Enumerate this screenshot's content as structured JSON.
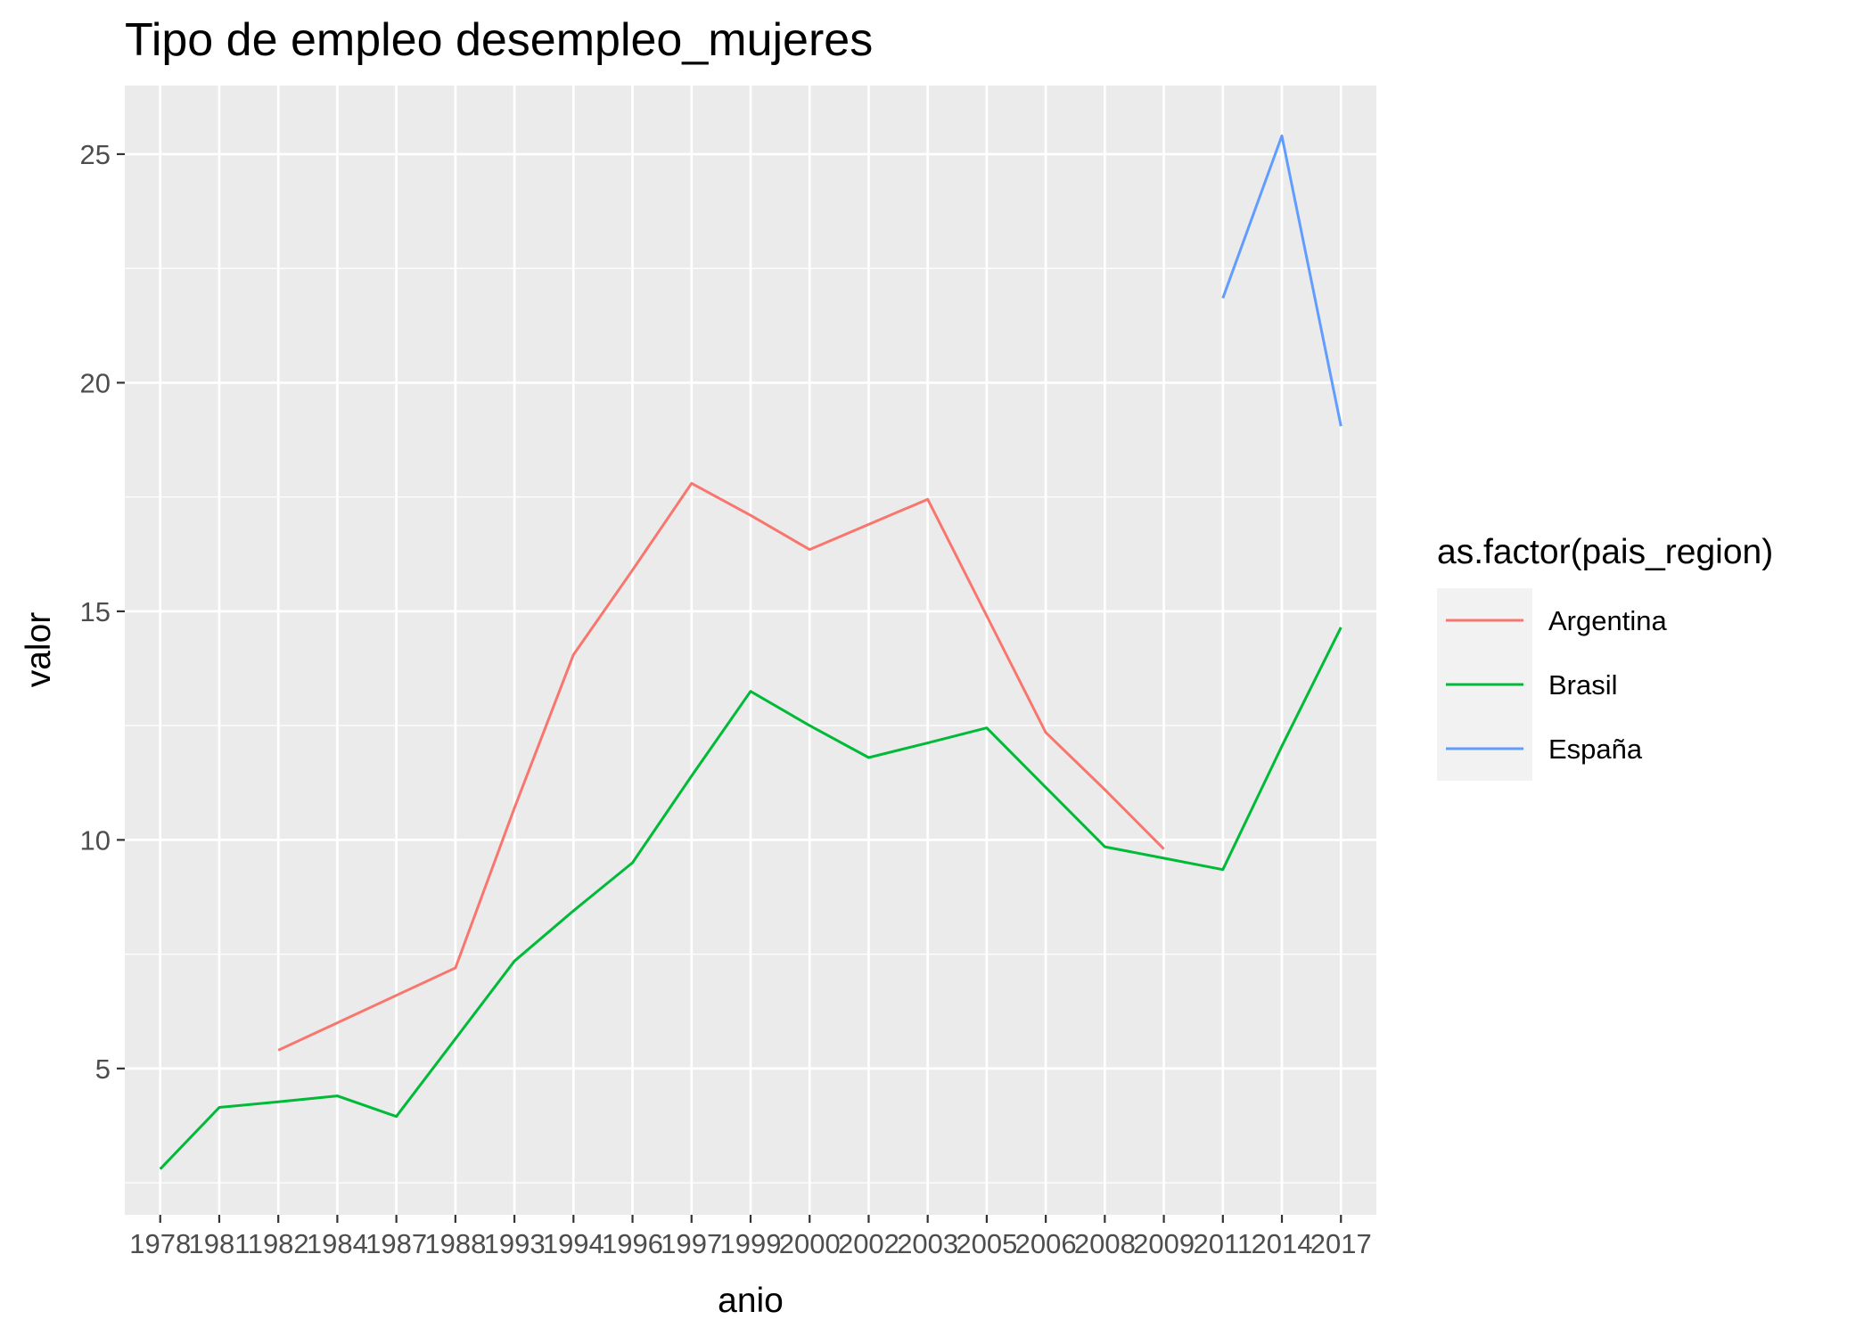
{
  "chart_data": {
    "type": "line",
    "title": "Tipo de empleo desempleo_mujeres",
    "xlabel": "anio",
    "ylabel": "valor",
    "categories": [
      "1978",
      "1981",
      "1982",
      "1984",
      "1987",
      "1988",
      "1993",
      "1994",
      "1996",
      "1997",
      "1999",
      "2000",
      "2002",
      "2003",
      "2005",
      "2006",
      "2008",
      "2009",
      "2011",
      "2014",
      "2017"
    ],
    "ylim": [
      1.8,
      26.5
    ],
    "yticks": [
      5,
      10,
      15,
      20,
      25
    ],
    "grid": true,
    "legend": {
      "title": "as.factor(pais_region)",
      "position": "right"
    },
    "series": [
      {
        "name": "Argentina",
        "color": "#F8766D",
        "values": [
          null,
          null,
          5.4,
          6.0,
          6.6,
          7.2,
          10.7,
          14.05,
          15.9,
          17.8,
          17.1,
          16.35,
          16.9,
          17.45,
          14.9,
          12.35,
          11.1,
          9.8,
          null,
          null,
          null
        ]
      },
      {
        "name": "Brasil",
        "color": "#00BA38",
        "values": [
          2.8,
          4.15,
          4.27,
          4.4,
          3.95,
          5.65,
          7.35,
          8.45,
          9.5,
          11.4,
          13.25,
          12.5,
          11.8,
          12.12,
          12.45,
          11.15,
          9.85,
          9.6,
          9.35,
          12.05,
          14.65
        ]
      },
      {
        "name": "España",
        "color": "#619CFF",
        "values": [
          null,
          null,
          null,
          null,
          null,
          null,
          null,
          null,
          null,
          null,
          null,
          null,
          null,
          null,
          null,
          null,
          null,
          null,
          21.85,
          25.4,
          19.05
        ]
      }
    ]
  }
}
